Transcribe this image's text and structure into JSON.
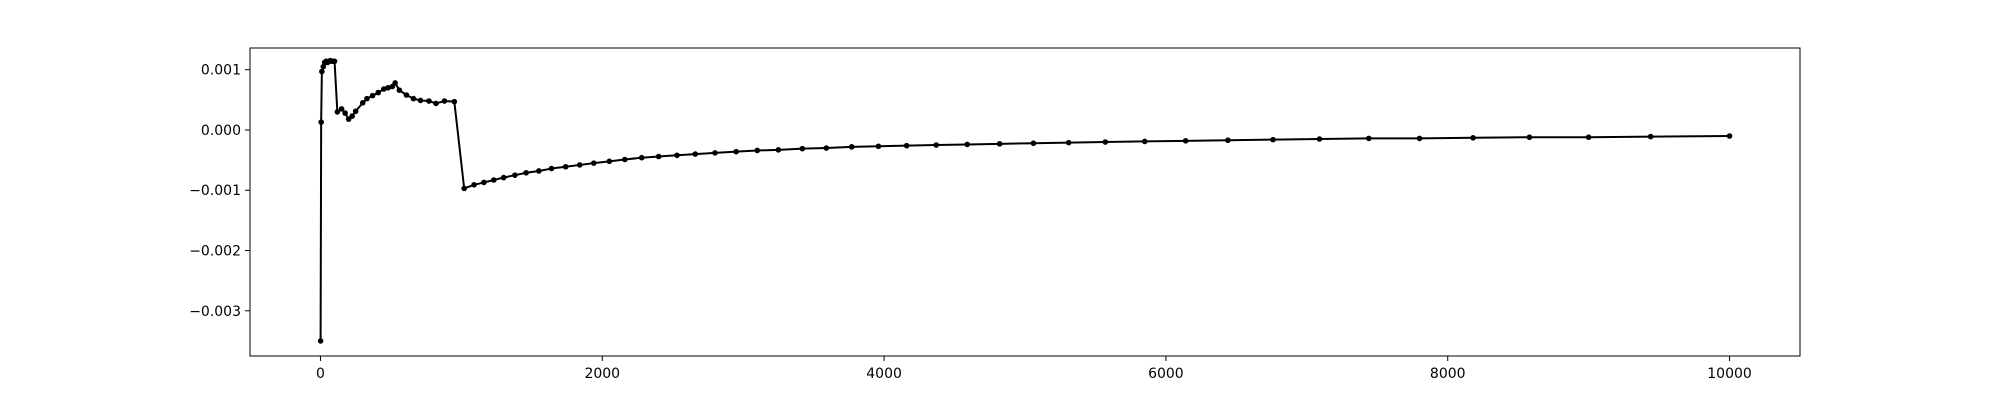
{
  "chart_data": {
    "type": "line",
    "title": "",
    "xlabel": "",
    "ylabel": "",
    "grid": false,
    "xlim": [
      -500,
      10500
    ],
    "ylim": [
      -0.00375,
      0.00136
    ],
    "xticks": [
      {
        "value": 0,
        "label": "0"
      },
      {
        "value": 2000,
        "label": "2000"
      },
      {
        "value": 4000,
        "label": "4000"
      },
      {
        "value": 6000,
        "label": "6000"
      },
      {
        "value": 8000,
        "label": "8000"
      },
      {
        "value": 10000,
        "label": "10000"
      }
    ],
    "yticks": [
      {
        "value": 0.001,
        "label": "0.001"
      },
      {
        "value": 0.0,
        "label": "0.000"
      },
      {
        "value": -0.001,
        "label": "−0.001"
      },
      {
        "value": -0.002,
        "label": "−0.002"
      },
      {
        "value": -0.003,
        "label": "−0.003"
      }
    ],
    "series": [
      {
        "color": "#000000",
        "marker": "circle",
        "points": [
          [
            1,
            -0.0035
          ],
          [
            5,
            0.00013
          ],
          [
            10,
            0.00097
          ],
          [
            20,
            0.00105
          ],
          [
            30,
            0.00112
          ],
          [
            40,
            0.00114
          ],
          [
            50,
            0.00112
          ],
          [
            60,
            0.00114
          ],
          [
            70,
            0.00115
          ],
          [
            80,
            0.00114
          ],
          [
            90,
            0.00114
          ],
          [
            100,
            0.00114
          ],
          [
            120,
            0.0003
          ],
          [
            150,
            0.00035
          ],
          [
            175,
            0.00028
          ],
          [
            200,
            0.00018
          ],
          [
            225,
            0.00023
          ],
          [
            250,
            0.00031
          ],
          [
            300,
            0.00045
          ],
          [
            330,
            0.00052
          ],
          [
            370,
            0.00057
          ],
          [
            410,
            0.00062
          ],
          [
            450,
            0.00068
          ],
          [
            480,
            0.0007
          ],
          [
            510,
            0.00072
          ],
          [
            530,
            0.00078
          ],
          [
            560,
            0.00066
          ],
          [
            610,
            0.00058
          ],
          [
            660,
            0.00052
          ],
          [
            710,
            0.00049
          ],
          [
            770,
            0.00048
          ],
          [
            820,
            0.00044
          ],
          [
            880,
            0.00048
          ],
          [
            950,
            0.00047
          ],
          [
            1020,
            -0.00097
          ],
          [
            1090,
            -0.00091
          ],
          [
            1160,
            -0.00087
          ],
          [
            1230,
            -0.00083
          ],
          [
            1300,
            -0.00079
          ],
          [
            1380,
            -0.00075
          ],
          [
            1460,
            -0.00071
          ],
          [
            1550,
            -0.00068
          ],
          [
            1640,
            -0.00064
          ],
          [
            1740,
            -0.00061
          ],
          [
            1840,
            -0.00058
          ],
          [
            1940,
            -0.00055
          ],
          [
            2050,
            -0.00052
          ],
          [
            2160,
            -0.00049
          ],
          [
            2280,
            -0.00046
          ],
          [
            2400,
            -0.00044
          ],
          [
            2530,
            -0.00042
          ],
          [
            2660,
            -0.0004
          ],
          [
            2800,
            -0.00038
          ],
          [
            2950,
            -0.00036
          ],
          [
            3100,
            -0.00034
          ],
          [
            3250,
            -0.00033
          ],
          [
            3420,
            -0.00031
          ],
          [
            3590,
            -0.0003
          ],
          [
            3770,
            -0.00028
          ],
          [
            3960,
            -0.00027
          ],
          [
            4160,
            -0.00026
          ],
          [
            4370,
            -0.00025
          ],
          [
            4590,
            -0.00024
          ],
          [
            4820,
            -0.00023
          ],
          [
            5060,
            -0.00022
          ],
          [
            5310,
            -0.00021
          ],
          [
            5570,
            -0.0002
          ],
          [
            5850,
            -0.00019
          ],
          [
            6140,
            -0.00018
          ],
          [
            6440,
            -0.00017
          ],
          [
            6760,
            -0.00016
          ],
          [
            7090,
            -0.00015
          ],
          [
            7440,
            -0.00014
          ],
          [
            7800,
            -0.00014
          ],
          [
            8180,
            -0.00013
          ],
          [
            8580,
            -0.00012
          ],
          [
            9000,
            -0.00012
          ],
          [
            9440,
            -0.00011
          ],
          [
            10000,
            -0.0001
          ]
        ]
      }
    ]
  }
}
